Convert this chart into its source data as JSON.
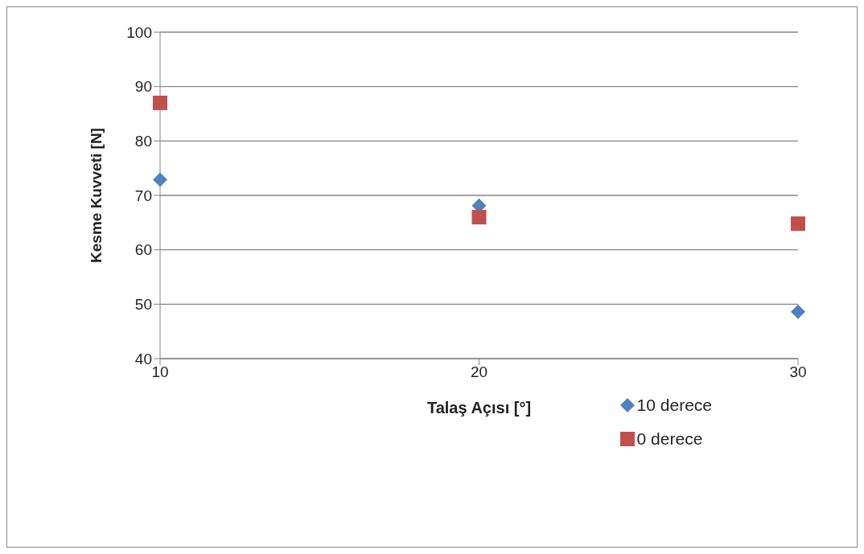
{
  "chart_data": {
    "type": "scatter",
    "xlabel": "Talaş Açısı [°]",
    "ylabel": "Kesme  Kuvveti [N]",
    "x": [
      10,
      20,
      30
    ],
    "series": [
      {
        "name": "10 derece",
        "color": "#4f81bd",
        "marker": "diamond",
        "values": [
          72.9,
          68.1,
          48.6
        ]
      },
      {
        "name": "0 derece",
        "color": "#c0504d",
        "marker": "square",
        "values": [
          87,
          66,
          64.8
        ]
      }
    ],
    "xlim": [
      10,
      30
    ],
    "xticks": [
      10,
      20,
      30
    ],
    "ylim": [
      40,
      100
    ],
    "yticks": [
      40,
      50,
      60,
      70,
      80,
      90,
      100
    ],
    "grid": "y",
    "legend": "bottom right"
  }
}
